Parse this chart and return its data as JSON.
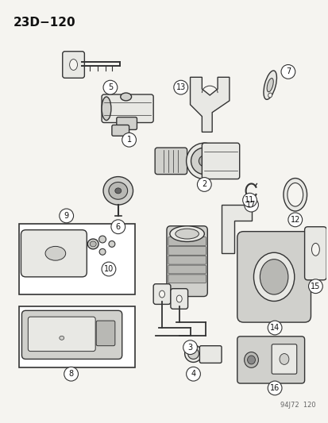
{
  "title": "23D−120",
  "footnote": "94J72  120",
  "bg_color": "#f5f4f0",
  "line_color": "#333333",
  "text_color": "#111111",
  "figsize": [
    4.14,
    5.33
  ],
  "dpi": 100
}
